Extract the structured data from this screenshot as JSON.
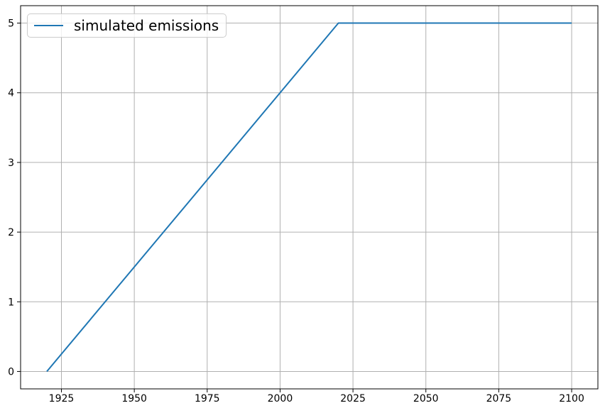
{
  "chart_data": {
    "type": "line",
    "title": "",
    "xlabel": "",
    "ylabel": "",
    "series": [
      {
        "name": "simulated emissions",
        "color": "#1f77b4",
        "x": [
          1920,
          2020,
          2100
        ],
        "y": [
          0,
          5,
          5
        ]
      }
    ],
    "xticks": [
      1925,
      1950,
      1975,
      2000,
      2025,
      2050,
      2075,
      2100
    ],
    "yticks": [
      0,
      1,
      2,
      3,
      4,
      5
    ],
    "xlim": [
      1911,
      2109
    ],
    "ylim": [
      -0.25,
      5.25
    ],
    "grid": true,
    "grid_color": "#b0b0b0",
    "spine_color": "#000000",
    "background_color": "#ffffff",
    "legend_position": "upper left"
  },
  "legend": {
    "label": "simulated emissions"
  }
}
